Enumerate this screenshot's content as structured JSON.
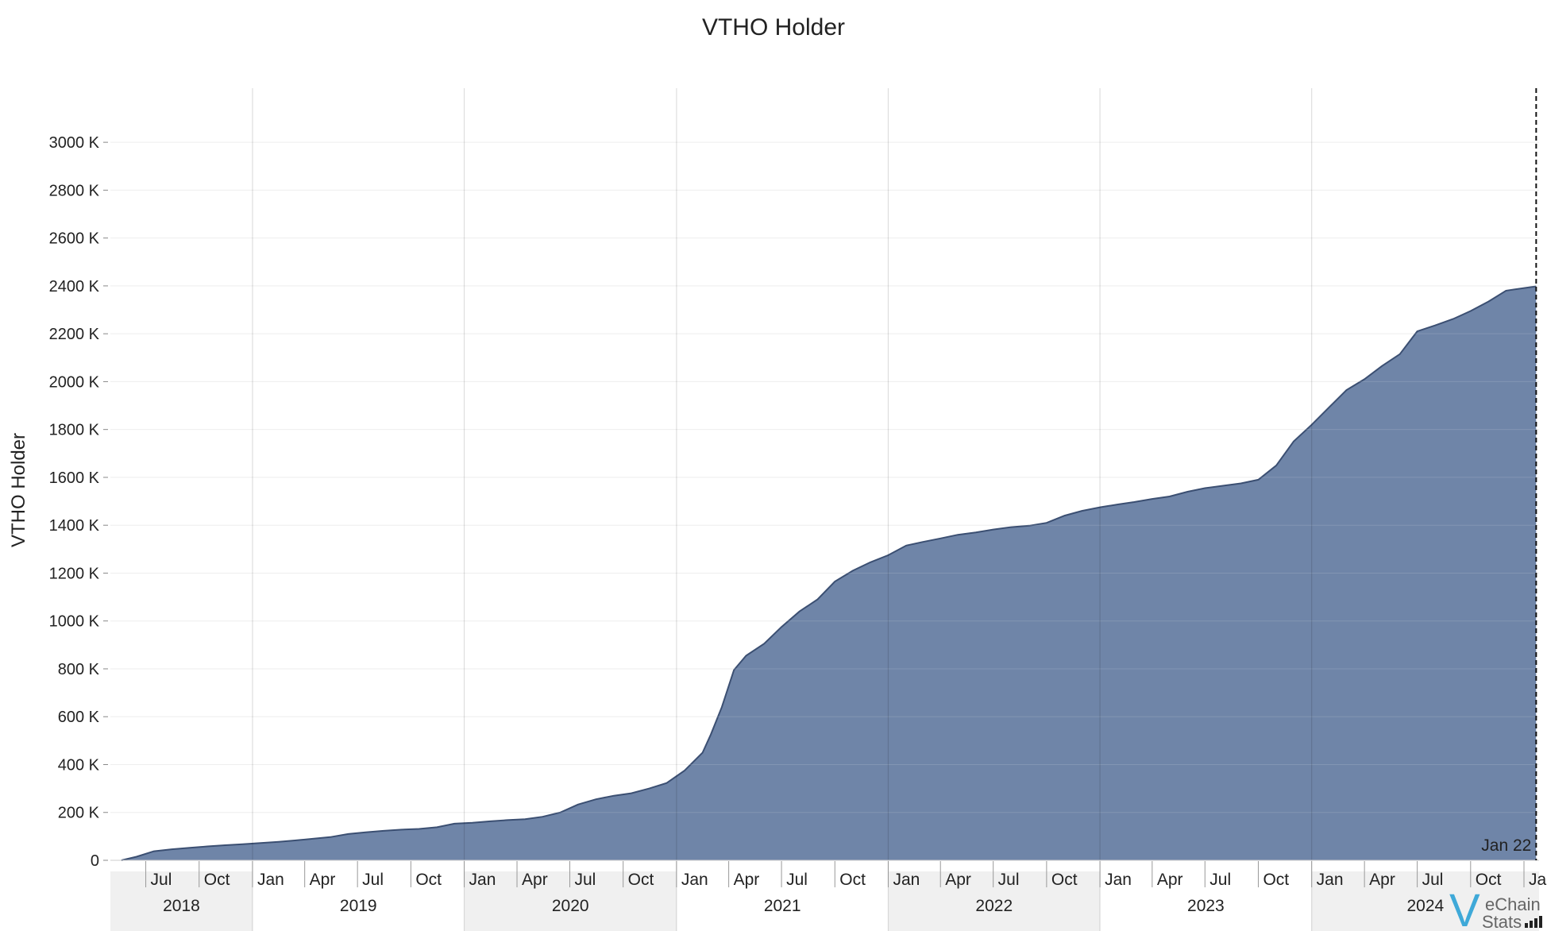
{
  "chart_data": {
    "type": "area",
    "title": "VTHO Holder",
    "ylabel": "VTHO Holder",
    "xlabel": "",
    "ylim": [
      0,
      3100
    ],
    "y_unit_suffix": " K",
    "yticks": [
      0,
      200,
      400,
      600,
      800,
      1000,
      1200,
      1400,
      1600,
      1800,
      2000,
      2200,
      2400,
      2600,
      2800,
      3000
    ],
    "x_range": [
      "2018-05-01",
      "2025-01-27"
    ],
    "years": [
      {
        "label": "2018",
        "start": "2018-05-01",
        "end": "2019-01-01"
      },
      {
        "label": "2019",
        "start": "2019-01-01",
        "end": "2020-01-01"
      },
      {
        "label": "2020",
        "start": "2020-01-01",
        "end": "2021-01-01"
      },
      {
        "label": "2021",
        "start": "2021-01-01",
        "end": "2022-01-01"
      },
      {
        "label": "2022",
        "start": "2022-01-01",
        "end": "2023-01-01"
      },
      {
        "label": "2023",
        "start": "2023-01-01",
        "end": "2024-01-01"
      },
      {
        "label": "2024",
        "start": "2024-01-01",
        "end": "2025-01-27"
      }
    ],
    "month_ticks": [
      {
        "date": "2018-07-01",
        "label": "Jul"
      },
      {
        "date": "2018-10-01",
        "label": "Oct"
      },
      {
        "date": "2019-01-01",
        "label": "Jan"
      },
      {
        "date": "2019-04-01",
        "label": "Apr"
      },
      {
        "date": "2019-07-01",
        "label": "Jul"
      },
      {
        "date": "2019-10-01",
        "label": "Oct"
      },
      {
        "date": "2020-01-01",
        "label": "Jan"
      },
      {
        "date": "2020-04-01",
        "label": "Apr"
      },
      {
        "date": "2020-07-01",
        "label": "Jul"
      },
      {
        "date": "2020-10-01",
        "label": "Oct"
      },
      {
        "date": "2021-01-01",
        "label": "Jan"
      },
      {
        "date": "2021-04-01",
        "label": "Apr"
      },
      {
        "date": "2021-07-01",
        "label": "Jul"
      },
      {
        "date": "2021-10-01",
        "label": "Oct"
      },
      {
        "date": "2022-01-01",
        "label": "Jan"
      },
      {
        "date": "2022-04-01",
        "label": "Apr"
      },
      {
        "date": "2022-07-01",
        "label": "Jul"
      },
      {
        "date": "2022-10-01",
        "label": "Oct"
      },
      {
        "date": "2023-01-01",
        "label": "Jan"
      },
      {
        "date": "2023-04-01",
        "label": "Apr"
      },
      {
        "date": "2023-07-01",
        "label": "Jul"
      },
      {
        "date": "2023-10-01",
        "label": "Oct"
      },
      {
        "date": "2024-01-01",
        "label": "Jan"
      },
      {
        "date": "2024-04-01",
        "label": "Apr"
      },
      {
        "date": "2024-07-01",
        "label": "Jul"
      },
      {
        "date": "2024-10-01",
        "label": "Oct"
      },
      {
        "date": "2025-01-01",
        "label": "Jan"
      }
    ],
    "series": [
      {
        "color": "#5f789f",
        "line_color": "#3b4f72",
        "points": [
          [
            "2018-05-20",
            0
          ],
          [
            "2018-06-15",
            15
          ],
          [
            "2018-07-15",
            38
          ],
          [
            "2018-08-15",
            46
          ],
          [
            "2018-09-15",
            52
          ],
          [
            "2018-10-15",
            58
          ],
          [
            "2018-11-15",
            63
          ],
          [
            "2018-12-15",
            67
          ],
          [
            "2019-01-15",
            72
          ],
          [
            "2019-02-15",
            77
          ],
          [
            "2019-03-15",
            83
          ],
          [
            "2019-04-15",
            90
          ],
          [
            "2019-05-15",
            97
          ],
          [
            "2019-06-15",
            110
          ],
          [
            "2019-07-15",
            117
          ],
          [
            "2019-08-15",
            123
          ],
          [
            "2019-09-15",
            128
          ],
          [
            "2019-10-15",
            131
          ],
          [
            "2019-11-15",
            138
          ],
          [
            "2019-12-15",
            153
          ],
          [
            "2020-01-15",
            157
          ],
          [
            "2020-02-15",
            163
          ],
          [
            "2020-03-15",
            168
          ],
          [
            "2020-04-15",
            172
          ],
          [
            "2020-05-15",
            182
          ],
          [
            "2020-06-15",
            200
          ],
          [
            "2020-07-15",
            233
          ],
          [
            "2020-08-15",
            255
          ],
          [
            "2020-09-15",
            270
          ],
          [
            "2020-10-15",
            280
          ],
          [
            "2020-11-15",
            300
          ],
          [
            "2020-12-15",
            323
          ],
          [
            "2021-01-15",
            375
          ],
          [
            "2021-02-15",
            450
          ],
          [
            "2021-03-01",
            525
          ],
          [
            "2021-03-20",
            640
          ],
          [
            "2021-04-10",
            795
          ],
          [
            "2021-05-01",
            855
          ],
          [
            "2021-06-01",
            905
          ],
          [
            "2021-07-01",
            975
          ],
          [
            "2021-08-01",
            1040
          ],
          [
            "2021-09-01",
            1090
          ],
          [
            "2021-10-01",
            1165
          ],
          [
            "2021-11-01",
            1210
          ],
          [
            "2021-12-01",
            1245
          ],
          [
            "2022-01-01",
            1275
          ],
          [
            "2022-02-01",
            1315
          ],
          [
            "2022-03-01",
            1330
          ],
          [
            "2022-04-01",
            1345
          ],
          [
            "2022-05-01",
            1360
          ],
          [
            "2022-06-01",
            1370
          ],
          [
            "2022-07-01",
            1382
          ],
          [
            "2022-08-01",
            1392
          ],
          [
            "2022-09-01",
            1398
          ],
          [
            "2022-10-01",
            1410
          ],
          [
            "2022-11-01",
            1440
          ],
          [
            "2022-12-01",
            1460
          ],
          [
            "2023-01-01",
            1475
          ],
          [
            "2023-02-01",
            1487
          ],
          [
            "2023-03-01",
            1497
          ],
          [
            "2023-04-01",
            1510
          ],
          [
            "2023-05-01",
            1520
          ],
          [
            "2023-06-01",
            1540
          ],
          [
            "2023-07-01",
            1555
          ],
          [
            "2023-08-01",
            1565
          ],
          [
            "2023-09-01",
            1575
          ],
          [
            "2023-10-01",
            1590
          ],
          [
            "2023-11-01",
            1650
          ],
          [
            "2023-12-01",
            1750
          ],
          [
            "2024-01-01",
            1820
          ],
          [
            "2024-02-01",
            1895
          ],
          [
            "2024-03-01",
            1965
          ],
          [
            "2024-04-01",
            2010
          ],
          [
            "2024-05-01",
            2065
          ],
          [
            "2024-06-01",
            2115
          ],
          [
            "2024-07-01",
            2210
          ],
          [
            "2024-08-01",
            2235
          ],
          [
            "2024-09-01",
            2262
          ],
          [
            "2024-10-01",
            2295
          ],
          [
            "2024-11-01",
            2335
          ],
          [
            "2024-12-01",
            2380
          ],
          [
            "2025-01-22",
            2398
          ]
        ]
      }
    ],
    "annotation": {
      "date": "2025-01-22",
      "label": "Jan 22"
    },
    "grid": true
  },
  "logo": {
    "letter": "V",
    "line1": "eChain",
    "line2": "Stats",
    "color": "#3fa9d8"
  }
}
